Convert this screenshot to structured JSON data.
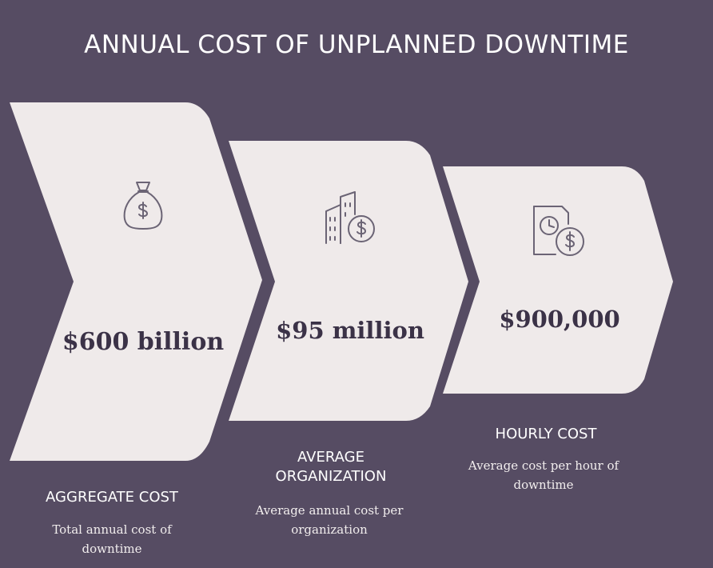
{
  "title": "ANNUAL COST OF UNPLANNED DOWNTIME",
  "colors": {
    "background": "#564c63",
    "card": "#efeaea",
    "icon_stroke": "#6b6475",
    "value_text": "#3b3247"
  },
  "steps": [
    {
      "icon": "money-bag-icon",
      "value": "$600 billion",
      "heading": "AGGREGATE COST",
      "description": "Total annual cost of downtime"
    },
    {
      "icon": "building-dollar-icon",
      "value": "$95 million",
      "heading": "AVERAGE ORGANIZATION",
      "description": "Average annual cost per organization"
    },
    {
      "icon": "clock-dollar-icon",
      "value": "$900,000",
      "heading": "HOURLY COST",
      "description": "Average cost per hour of downtime"
    }
  ]
}
